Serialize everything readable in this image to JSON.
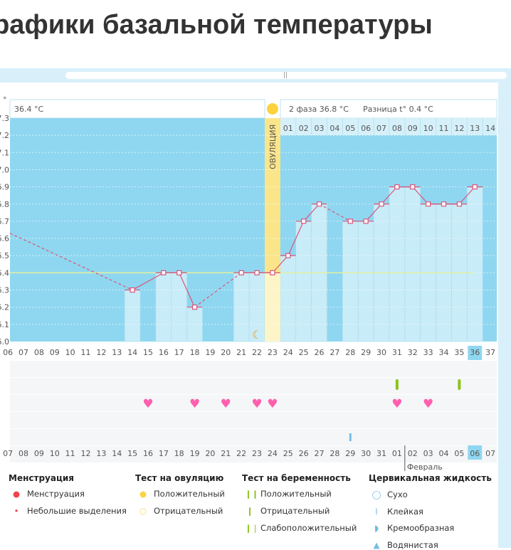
{
  "title": "Графики базальной температуры",
  "header": {
    "phase1_temp": "36.4 °C",
    "phase2_label": "2 фаза",
    "phase2_temp": "36.8 °C",
    "diff_label": "Разница t°",
    "diff_value": "0.4 °C",
    "ovulation_label": "ОВУЛЯЦИЯ",
    "degree_symbol": "°"
  },
  "colors": {
    "plot_bg": "#8fd7f0",
    "bar": "#c8ecf8",
    "line": "#d9557a",
    "ovulation": "#fbe58a",
    "coverline": "#e4f0a0",
    "heart": "#ff5fae",
    "test_green": "#8cc21f",
    "today": "#8fd7f0",
    "red_date": "#e8305a"
  },
  "chart_data": {
    "type": "line",
    "ylabel": "°",
    "ylim": [
      36.0,
      37.3
    ],
    "yticks": [
      "36.0",
      "36.1",
      "36.2",
      "36.3",
      "36.4",
      "36.5",
      "36.6",
      "36.7",
      "36.8",
      "36.9",
      "37.0",
      "37.1",
      "37.2",
      "37.3"
    ],
    "coverline": 36.4,
    "cycle_days": [
      "07",
      "08",
      "09",
      "10",
      "11",
      "12",
      "13",
      "14",
      "15",
      "16",
      "17",
      "18",
      "19",
      "20",
      "21",
      "22",
      "23",
      "24",
      "25",
      "26",
      "27",
      "28",
      "29",
      "30",
      "31",
      "32",
      "33",
      "34",
      "35",
      "36",
      "37"
    ],
    "current_cycle_day": "36",
    "phase2_days": [
      "01",
      "02",
      "03",
      "04",
      "05",
      "06",
      "07",
      "08",
      "09",
      "10",
      "11",
      "12",
      "13",
      "14"
    ],
    "ovulation_day": 23,
    "start_point": {
      "day": 5.5,
      "temp": 36.63
    },
    "points": [
      [
        14,
        36.3
      ],
      [
        16,
        36.4
      ],
      [
        17,
        36.4
      ],
      [
        18,
        36.2
      ],
      [
        21,
        36.4
      ],
      [
        22,
        36.4
      ],
      [
        23,
        36.4
      ],
      [
        24,
        36.5
      ],
      [
        25,
        36.7
      ],
      [
        26,
        36.8
      ],
      [
        28,
        36.7
      ],
      [
        29,
        36.7
      ],
      [
        30,
        36.8
      ],
      [
        31,
        36.9
      ],
      [
        32,
        36.9
      ],
      [
        33,
        36.8
      ],
      [
        34,
        36.8
      ],
      [
        35,
        36.8
      ],
      [
        36,
        36.9
      ]
    ],
    "dashed_segments": [
      [
        5.5,
        14
      ],
      [
        18,
        21
      ],
      [
        26,
        28
      ]
    ],
    "moon_day": 22
  },
  "markers": {
    "pregnancy_test_negative_days": [
      31,
      35
    ],
    "sex_days": [
      15,
      18,
      20,
      22,
      23,
      31,
      33
    ],
    "cervical_sticky_days": [
      28
    ]
  },
  "dates": [
    "07",
    "08",
    "09",
    "10",
    "11",
    "12",
    "13",
    "14",
    "15",
    "16",
    "17",
    "18",
    "19",
    "20",
    "21",
    "22",
    "23",
    "24",
    "25",
    "26",
    "27",
    "28",
    "29",
    "30",
    "31",
    "01",
    "02",
    "03",
    "04",
    "05",
    "06",
    "07"
  ],
  "red_dates_idx": [
    0,
    6,
    7,
    13,
    14,
    20,
    21,
    27,
    28
  ],
  "today_date_idx": 30,
  "month_label": "Февраль",
  "legend": [
    {
      "title": "Менструация",
      "items": [
        "Менструация",
        "Небольшие выделения"
      ]
    },
    {
      "title": "Тест на овуляцию",
      "items": [
        "Положительный",
        "Отрицательный"
      ]
    },
    {
      "title": "Тест на беременность",
      "items": [
        "Положительный",
        "Отрицательный",
        "Слабоположительный"
      ]
    },
    {
      "title": "Цервикальная жидкость",
      "items": [
        "Сухо",
        "Клейкая",
        "Кремообразная",
        "Водянистая"
      ]
    }
  ]
}
